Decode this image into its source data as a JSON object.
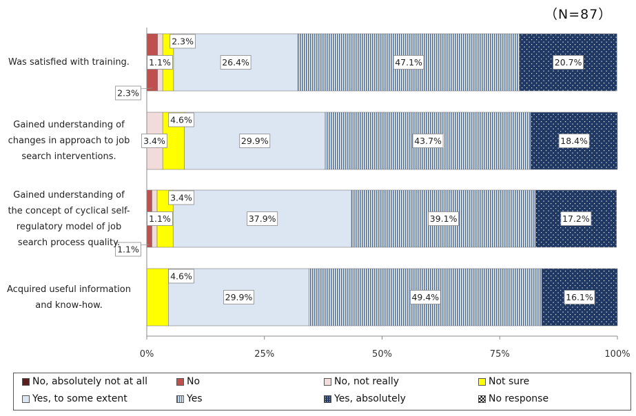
{
  "n_label": "（N=87）",
  "chart_data": {
    "type": "bar",
    "orientation": "horizontal",
    "stacked": true,
    "percent": true,
    "categories": [
      "Was satisfied with training.",
      "Gained understanding of changes in approach to job search interventions.",
      "Gained understanding of the concept of cyclical self-regulatory model of job search process quality.",
      "Acquired useful information and know-how."
    ],
    "category_lines": [
      [
        "Was satisfied with training."
      ],
      [
        "Gained understanding of",
        "changes in approach to job",
        "search interventions."
      ],
      [
        "Gained understanding of",
        "the concept of cyclical self-",
        "regulatory model of job",
        "search process quality."
      ],
      [
        "Acquired useful information",
        "and know-how."
      ]
    ],
    "series": [
      {
        "name": "No, absolutely not at all",
        "color": "#5c1f1f",
        "pattern": "solid",
        "values": [
          0,
          0,
          0,
          0
        ],
        "labels": [
          "",
          "",
          "",
          ""
        ]
      },
      {
        "name": "No",
        "color": "#c0504d",
        "pattern": "solid",
        "values": [
          2.3,
          0,
          1.1,
          0
        ],
        "labels": [
          "2.3%",
          "",
          "1.1%",
          ""
        ]
      },
      {
        "name": "No, not really",
        "color": "#f2dcdb",
        "pattern": "solid",
        "values": [
          1.1,
          3.4,
          1.1,
          0
        ],
        "labels": [
          "1.1%",
          "3.4%",
          "1.1%",
          ""
        ]
      },
      {
        "name": "Not sure",
        "color": "#ffff00",
        "pattern": "solid",
        "values": [
          2.3,
          4.6,
          3.4,
          4.6
        ],
        "labels": [
          "2.3%",
          "4.6%",
          "3.4%",
          "4.6%"
        ]
      },
      {
        "name": "Yes, to some extent",
        "color": "#dce6f2",
        "pattern": "solid",
        "values": [
          26.4,
          29.9,
          37.9,
          29.9
        ],
        "labels": [
          "26.4%",
          "29.9%",
          "37.9%",
          "29.9%"
        ]
      },
      {
        "name": "Yes",
        "color": "#4f6d99",
        "pattern": "vertical-stripes",
        "values": [
          47.1,
          43.7,
          39.1,
          49.4
        ],
        "labels": [
          "47.1%",
          "43.7%",
          "39.1%",
          "49.4%"
        ]
      },
      {
        "name": "Yes, absolutely",
        "color": "#1f3864",
        "pattern": "dots",
        "values": [
          20.7,
          18.4,
          17.2,
          16.1
        ],
        "labels": [
          "20.7%",
          "18.4%",
          "17.2%",
          "16.1%"
        ]
      },
      {
        "name": "No response",
        "color": "#000000",
        "pattern": "checker",
        "values": [
          0,
          0,
          0,
          0
        ],
        "labels": [
          "",
          "",
          "",
          ""
        ]
      }
    ],
    "x_ticks": [
      "0%",
      "25%",
      "50%",
      "75%",
      "100%"
    ],
    "xlim": [
      0,
      100
    ],
    "grid": false,
    "legend_position": "bottom"
  }
}
